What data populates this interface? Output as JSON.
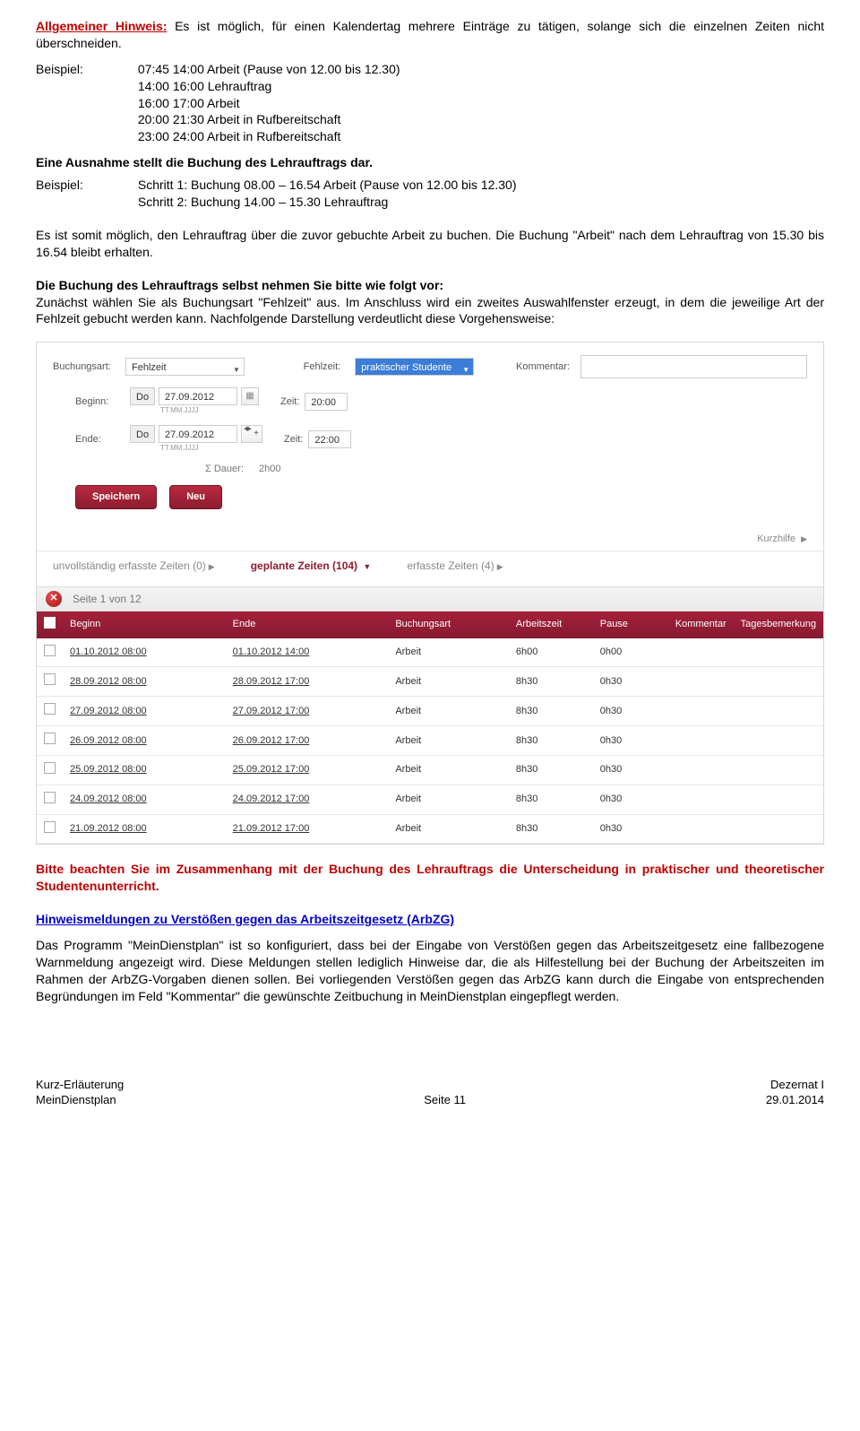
{
  "text": {
    "hinweis_label": "Allgemeiner Hinweis:",
    "hinweis_body": " Es ist möglich, für einen Kalendertag mehrere Einträge zu tätigen, solange sich die einzelnen Zeiten nicht überschneiden.",
    "beispiel_label": "Beispiel:",
    "bsp1_l1": "07:45 14:00 Arbeit (Pause von 12.00 bis 12.30)",
    "bsp1_l2": "14:00 16:00 Lehrauftrag",
    "bsp1_l3": "16:00 17:00 Arbeit",
    "bsp1_l4": "20:00 21:30 Arbeit in Rufbereitschaft",
    "bsp1_l5": "23:00 24:00 Arbeit in Rufbereitschaft",
    "ausnahme": "Eine Ausnahme stellt die Buchung des Lehrauftrags dar.",
    "bsp2_l1": "Schritt 1: Buchung 08.00 – 16.54 Arbeit (Pause von 12.00 bis 12.30)",
    "bsp2_l2": "Schritt 2: Buchung 14.00 – 15.30 Lehrauftrag",
    "p_after1": "Es ist somit möglich, den Lehrauftrag über die zuvor gebuchte Arbeit zu buchen. Die Buchung \"Arbeit\" nach dem Lehrauftrag von 15.30 bis 16.54 bleibt erhalten.",
    "p_bold": "Die Buchung des Lehrauftrags selbst nehmen Sie bitte wie folgt vor:",
    "p_after2": "Zunächst wählen Sie als Buchungsart \"Fehlzeit\" aus. Im Anschluss wird ein zweites Auswahlfenster erzeugt, in dem die jeweilige Art der Fehlzeit gebucht werden kann. Nachfolgende Darstellung verdeutlicht diese Vorgehensweise:",
    "warn_para": "Bitte beachten Sie im Zusammenhang mit der Buchung des Lehrauftrags die Unterscheidung in praktischer und theoretischer Studentenunterricht.",
    "arbzg_head": "Hinweismeldungen zu Verstößen gegen das Arbeitszeitgesetz (ArbZG)",
    "arbzg_body": "Das Programm \"MeinDienstplan\" ist so konfiguriert, dass bei der Eingabe von Verstößen gegen das Arbeitszeitgesetz eine fallbezogene Warnmeldung angezeigt wird. Diese Meldungen stellen lediglich Hinweise dar, die als Hilfestellung bei der Buchung der Arbeitszeiten im Rahmen der ArbZG-Vorgaben dienen sollen. Bei vorliegenden Verstößen gegen das ArbZG kann durch die Eingabe von entsprechenden Begründungen im Feld \"Kommentar\" die gewünschte Zeitbuchung in MeinDienstplan eingepflegt werden."
  },
  "form": {
    "buchungsart_label": "Buchungsart:",
    "buchungsart_value": "Fehlzeit",
    "fehlzeit_label": "Fehlzeit:",
    "fehlzeit_value": "praktischer Studente",
    "kommentar_label": "Kommentar:",
    "beginn_label": "Beginn:",
    "ende_label": "Ende:",
    "zeit_label": "Zeit:",
    "day": "Do",
    "date": "27.09.2012",
    "date_hint": "TT.MM.JJJJ",
    "zeit1": "20:00",
    "zeit2": "22:00",
    "dauer_label": "Σ Dauer:",
    "dauer_value": "2h00",
    "btn_save": "Speichern",
    "btn_new": "Neu",
    "kurzhilfe": "Kurzhilfe"
  },
  "tabs": {
    "t1": "unvollständig erfasste Zeiten (0)",
    "t2": "geplante Zeiten (104)",
    "t3": "erfasste Zeiten (4)"
  },
  "pager": {
    "close": "✕",
    "text": "Seite 1 von 12"
  },
  "table": {
    "headers": {
      "beginn": "Beginn",
      "ende": "Ende",
      "buchungsart": "Buchungsart",
      "arbeitszeit": "Arbeitszeit",
      "pause": "Pause",
      "kommentar": "Kommentar",
      "tagesbemerkung": "Tagesbemerkung"
    },
    "rows": [
      {
        "b": "01.10.2012 08:00",
        "e": "01.10.2012 14:00",
        "ba": "Arbeit",
        "az": "6h00",
        "p": "0h00"
      },
      {
        "b": "28.09.2012 08:00",
        "e": "28.09.2012 17:00",
        "ba": "Arbeit",
        "az": "8h30",
        "p": "0h30"
      },
      {
        "b": "27.09.2012 08:00",
        "e": "27.09.2012 17:00",
        "ba": "Arbeit",
        "az": "8h30",
        "p": "0h30"
      },
      {
        "b": "26.09.2012 08:00",
        "e": "26.09.2012 17:00",
        "ba": "Arbeit",
        "az": "8h30",
        "p": "0h30"
      },
      {
        "b": "25.09.2012 08:00",
        "e": "25.09.2012 17:00",
        "ba": "Arbeit",
        "az": "8h30",
        "p": "0h30"
      },
      {
        "b": "24.09.2012 08:00",
        "e": "24.09.2012 17:00",
        "ba": "Arbeit",
        "az": "8h30",
        "p": "0h30"
      },
      {
        "b": "21.09.2012 08:00",
        "e": "21.09.2012 17:00",
        "ba": "Arbeit",
        "az": "8h30",
        "p": "0h30"
      }
    ]
  },
  "footer": {
    "l1a": "Kurz-Erläuterung",
    "l1b": "MeinDienstplan",
    "mid": "Seite 11",
    "r1a": "Dezernat I",
    "r1b": "29.01.2014"
  }
}
